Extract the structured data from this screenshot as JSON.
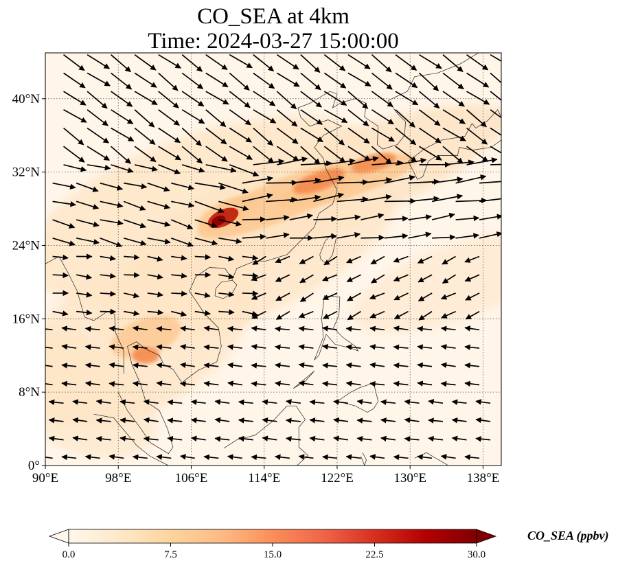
{
  "title": {
    "line1": "CO_SEA at 4km",
    "line2": "Time: 2024-03-27 15:00:00"
  },
  "map": {
    "extent": {
      "lon": [
        90,
        140
      ],
      "lat": [
        0,
        45
      ]
    },
    "lon_ticks": [
      {
        "value": 90,
        "label": "90°E"
      },
      {
        "value": 98,
        "label": "98°E"
      },
      {
        "value": 106,
        "label": "106°E"
      },
      {
        "value": 114,
        "label": "114°E"
      },
      {
        "value": 122,
        "label": "122°E"
      },
      {
        "value": 130,
        "label": "130°E"
      },
      {
        "value": 138,
        "label": "138°E"
      }
    ],
    "lat_ticks": [
      {
        "value": 0,
        "label": "0°"
      },
      {
        "value": 8,
        "label": "8°N"
      },
      {
        "value": 16,
        "label": "16°N"
      },
      {
        "value": 24,
        "label": "24°N"
      },
      {
        "value": 32,
        "label": "32°N"
      },
      {
        "value": 40,
        "label": "40°N"
      }
    ],
    "gridlines": true,
    "colormap": "OrRd",
    "background_color": "#fff5e8",
    "plume_colors": [
      "#fde4c4",
      "#fdc890",
      "#f48a4c",
      "#c0220c",
      "#8b0000"
    ],
    "wind_vectors": "on"
  },
  "colorbar": {
    "label": "CO_SEA (ppbv)",
    "min": 0.0,
    "max": 30.0,
    "extend": "both",
    "ticks": [
      {
        "value": 0.0,
        "label": "0.0"
      },
      {
        "value": 7.5,
        "label": "7.5"
      },
      {
        "value": 15.0,
        "label": "15.0"
      },
      {
        "value": 22.5,
        "label": "22.5"
      },
      {
        "value": 30.0,
        "label": "30.0"
      }
    ],
    "colors": [
      "#fff7ec",
      "#fee8c8",
      "#fdd49e",
      "#fdbb84",
      "#fc8d59",
      "#ef6548",
      "#d7301f",
      "#b30000",
      "#7f0000"
    ]
  }
}
